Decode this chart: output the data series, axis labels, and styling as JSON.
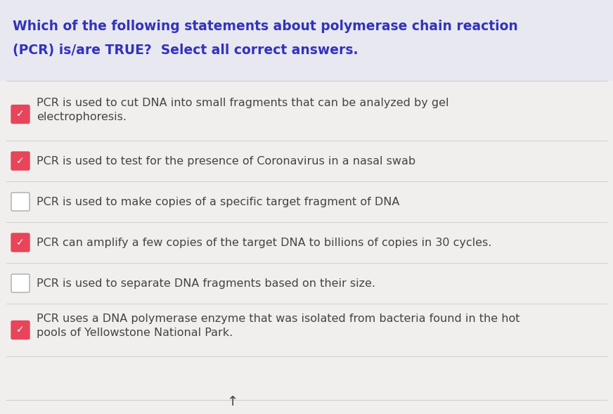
{
  "background_color": "#f0efed",
  "header_bg_color": "#e8e8f0",
  "title_line1": "Which of the following statements about polymerase chain reaction",
  "title_line2": "(PCR) is/are TRUE?  Select all correct answers.",
  "title_color": "#3333bb",
  "title_fontsize": 13.5,
  "items": [
    {
      "checked": true,
      "text_line1": "PCR is used to cut DNA into small fragments that can be analyzed by gel",
      "text_line2": "electrophoresis.",
      "two_lines": true
    },
    {
      "checked": true,
      "text_line1": "PCR is used to test for the presence of Coronavirus in a nasal swab",
      "text_line2": "",
      "two_lines": false
    },
    {
      "checked": false,
      "text_line1": "PCR is used to make copies of a specific target fragment of DNA",
      "text_line2": "",
      "two_lines": false
    },
    {
      "checked": true,
      "text_line1": "PCR can amplify a few copies of the target DNA to billions of copies in 30 cycles.",
      "text_line2": "",
      "two_lines": false
    },
    {
      "checked": false,
      "text_line1": "PCR is used to separate DNA fragments based on their size.",
      "text_line2": "",
      "two_lines": false
    },
    {
      "checked": true,
      "text_line1": "PCR uses a DNA polymerase enzyme that was isolated from bacteria found in the hot",
      "text_line2": "pools of Yellowstone National Park.",
      "two_lines": true
    }
  ],
  "item_text_color": "#444444",
  "item_fontsize": 11.5,
  "check_color": "#e8445a",
  "unchecked_color": "#ffffff",
  "unchecked_border": "#aaaaaa",
  "divider_color": "#cccccc",
  "divider_alpha": 0.9
}
